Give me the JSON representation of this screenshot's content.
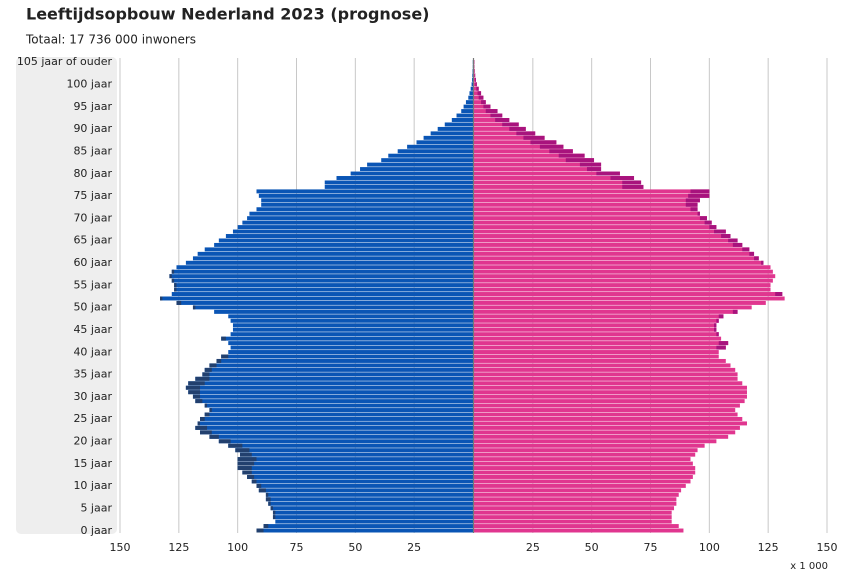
{
  "chart_data": {
    "type": "pyramid",
    "title": "Leeftijdsopbouw Nederland 2023 (prognose)",
    "subtitle": "Totaal: 17 736 000 inwoners",
    "unit_note": "x 1 000",
    "categories": [
      "0 jaar",
      null,
      null,
      null,
      null,
      "5 jaar",
      null,
      null,
      null,
      null,
      "10 jaar",
      null,
      null,
      null,
      null,
      "15 jaar",
      null,
      null,
      null,
      null,
      "20 jaar",
      null,
      null,
      null,
      null,
      "25 jaar",
      null,
      null,
      null,
      null,
      "30 jaar",
      null,
      null,
      null,
      null,
      "35 jaar",
      null,
      null,
      null,
      null,
      "40 jaar",
      null,
      null,
      null,
      null,
      "45 jaar",
      null,
      null,
      null,
      null,
      "50 jaar",
      null,
      null,
      null,
      null,
      "55 jaar",
      null,
      null,
      null,
      null,
      "60 jaar",
      null,
      null,
      null,
      null,
      "65 jaar",
      null,
      null,
      null,
      null,
      "70 jaar",
      null,
      null,
      null,
      null,
      "75 jaar",
      null,
      null,
      null,
      null,
      "80 jaar",
      null,
      null,
      null,
      null,
      "85 jaar",
      null,
      null,
      null,
      null,
      "90 jaar",
      null,
      null,
      null,
      null,
      "95 jaar",
      null,
      null,
      null,
      null,
      "100 jaar",
      null,
      null,
      null,
      null,
      "105 jaar of ouder"
    ],
    "series": [
      {
        "side": "left",
        "color": "#0a55b5",
        "surplus_color": "#22406e",
        "values": [
          92,
          89,
          84,
          85,
          85,
          86,
          87,
          88,
          88,
          91,
          92,
          94,
          96,
          98,
          100,
          100,
          100,
          99,
          101,
          104,
          108,
          112,
          116,
          118,
          117,
          116,
          114,
          112,
          114,
          118,
          119,
          121,
          122,
          121,
          118,
          115,
          114,
          112,
          109,
          107,
          104,
          103,
          104,
          107,
          103,
          102,
          102,
          103,
          104,
          110,
          119,
          126,
          133,
          128,
          127,
          127,
          128,
          129,
          128,
          126,
          122,
          119,
          117,
          114,
          110,
          108,
          105,
          102,
          100,
          98,
          96,
          95,
          92,
          90,
          90,
          91,
          92,
          63,
          63,
          58,
          52,
          48,
          45,
          39,
          36,
          32,
          28,
          24,
          21,
          18,
          15,
          12,
          9,
          7,
          5,
          4,
          3,
          2,
          1.5,
          1,
          0.6,
          0.4,
          0.3,
          0.2,
          0.1,
          0.1
        ]
      },
      {
        "side": "right",
        "color": "#e0368f",
        "surplus_color": "#a8137d",
        "values": [
          89,
          87,
          84,
          84,
          84,
          85,
          86,
          86,
          87,
          88,
          90,
          92,
          93,
          94,
          94,
          93,
          92,
          94,
          95,
          98,
          103,
          108,
          111,
          113,
          116,
          114,
          112,
          111,
          113,
          115,
          116,
          116,
          116,
          114,
          112,
          112,
          111,
          109,
          107,
          104,
          104,
          107,
          108,
          105,
          104,
          103,
          103,
          104,
          106,
          112,
          118,
          124,
          132,
          131,
          126,
          126,
          127,
          128,
          127,
          126,
          123,
          121,
          119,
          117,
          114,
          112,
          109,
          107,
          103,
          101,
          99,
          96,
          95,
          95,
          96,
          100,
          100,
          72,
          71,
          68,
          62,
          54,
          54,
          51,
          47,
          42,
          38,
          35,
          30,
          26,
          22,
          19,
          15,
          12,
          10,
          7,
          5,
          4,
          3,
          2,
          1.2,
          0.8,
          0.5,
          0.3,
          0.2,
          0.2
        ]
      }
    ],
    "xlim": [
      0,
      150
    ],
    "xticks": [
      25,
      50,
      75,
      100,
      125,
      150
    ],
    "grid": true
  }
}
